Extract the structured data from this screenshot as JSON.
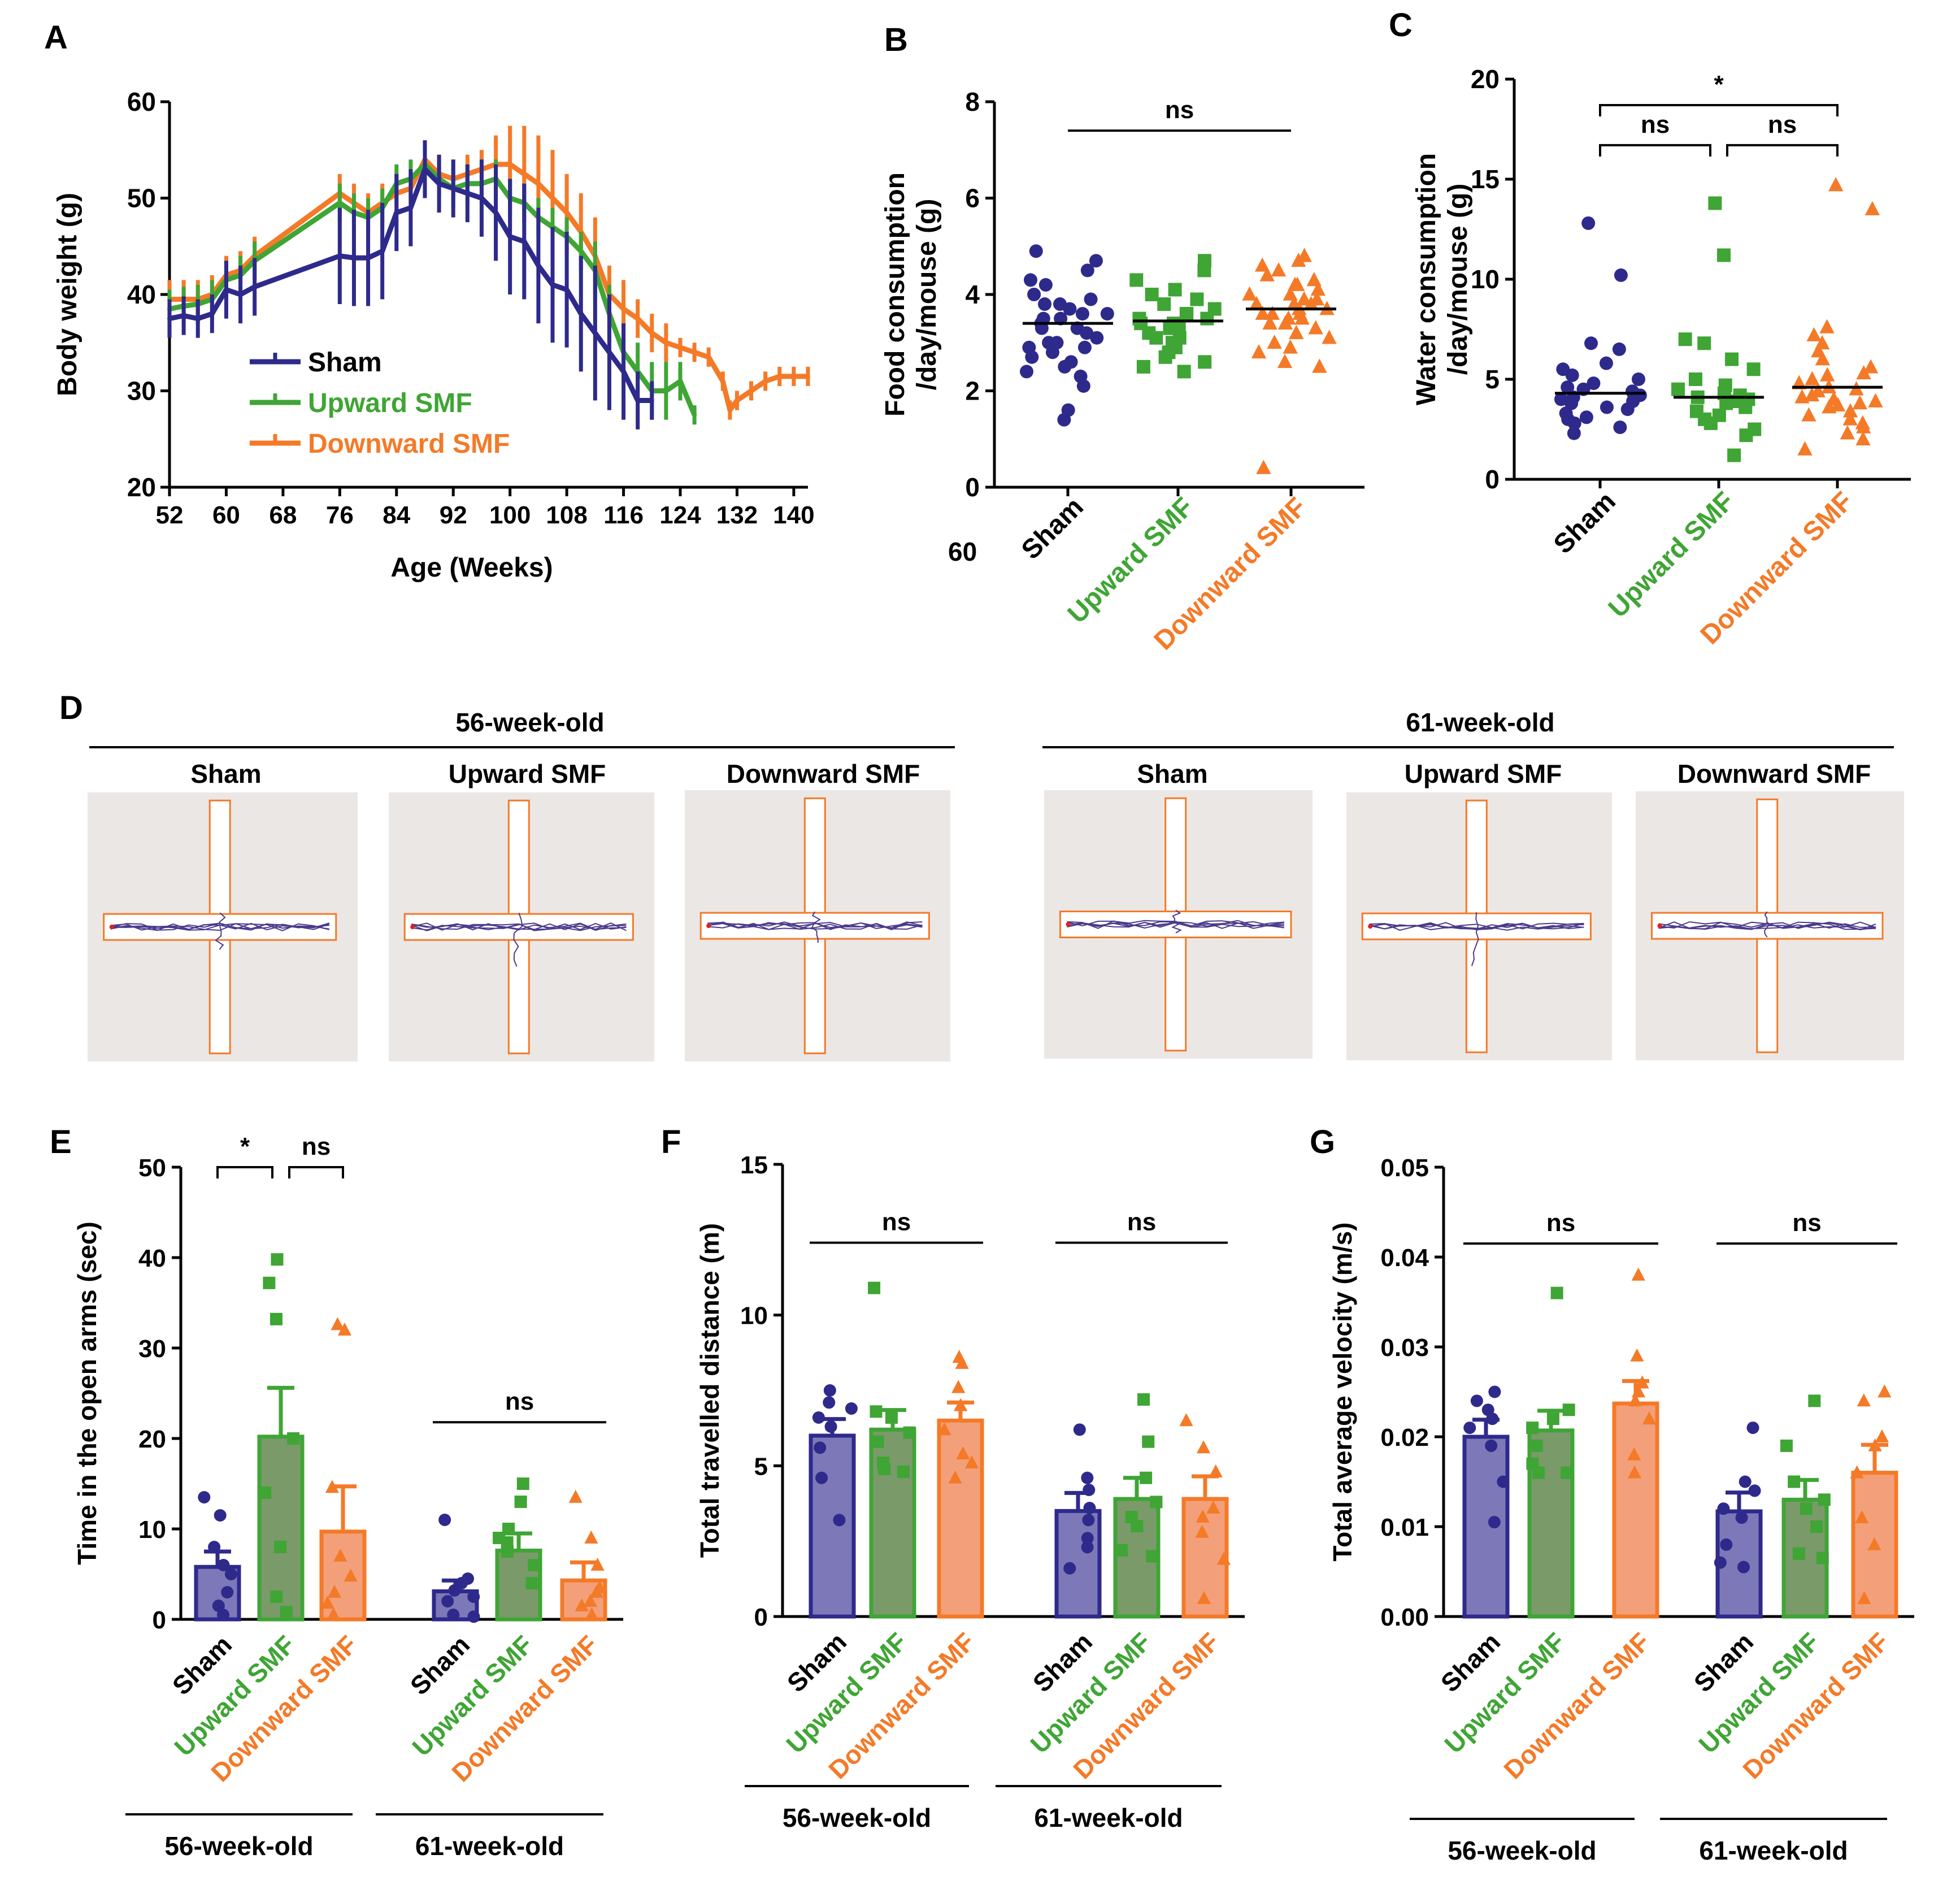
{
  "colors": {
    "sham": "#2e2a8c",
    "upward": "#3fa535",
    "downward": "#f47a28",
    "arena": "#ebe7e5",
    "arm": "#f47a28",
    "track": "#4a3a8c"
  },
  "panels": {
    "A": "A",
    "B": "B",
    "C": "C",
    "D": "D",
    "E": "E",
    "F": "F",
    "G": "G"
  },
  "groups": {
    "sham": "Sham",
    "upward": "Upward SMF",
    "downward": "Downward SMF"
  },
  "ages": {
    "w56": "56-week-old",
    "w61": "61-week-old"
  },
  "stray_label": "60",
  "chart_data": [
    {
      "id": "A",
      "type": "line",
      "title": "",
      "xlabel": "Age (Weeks)",
      "ylabel": "Body weight (g)",
      "xlim": [
        52,
        142
      ],
      "ylim": [
        20,
        60
      ],
      "xticks": [
        "52",
        "60",
        "68",
        "76",
        "84",
        "92",
        "100",
        "108",
        "116",
        "124",
        "132",
        "140"
      ],
      "yticks": [
        "20",
        "30",
        "40",
        "50",
        "60"
      ],
      "legend": [
        "Sham",
        "Upward SMF",
        "Downward SMF"
      ],
      "series": [
        {
          "name": "Sham",
          "color_key": "sham",
          "x": [
            52,
            54,
            56,
            58,
            60,
            62,
            64,
            76,
            78,
            80,
            82,
            84,
            86,
            88,
            90,
            92,
            94,
            96,
            98,
            100,
            102,
            104,
            106,
            108,
            110,
            112,
            114,
            116,
            118,
            120
          ],
          "y": [
            37.5,
            37.8,
            37.5,
            38,
            40.5,
            40,
            40.8,
            44,
            43.8,
            43.8,
            44.5,
            48.5,
            49,
            53,
            51.5,
            51,
            50.5,
            50,
            48.5,
            46,
            45.5,
            43,
            41,
            40.5,
            38,
            36,
            34,
            32,
            29,
            29
          ],
          "err": [
            2,
            2,
            2,
            2,
            3,
            3,
            3,
            5,
            5,
            5,
            5,
            4,
            4,
            3,
            3,
            3,
            3,
            4,
            5,
            6,
            6,
            6,
            6,
            6,
            6,
            7,
            6,
            5,
            3,
            2
          ]
        },
        {
          "name": "Upward SMF",
          "color_key": "upward",
          "x": [
            52,
            54,
            56,
            58,
            60,
            62,
            64,
            76,
            78,
            80,
            82,
            84,
            86,
            88,
            90,
            92,
            94,
            96,
            98,
            100,
            102,
            104,
            106,
            108,
            110,
            112,
            114,
            116,
            118,
            120,
            122,
            124,
            126
          ],
          "y": [
            38.5,
            38.8,
            39,
            39.5,
            41.5,
            42,
            43.5,
            49.5,
            48.5,
            48,
            49,
            51.5,
            52,
            53.5,
            52,
            51,
            51.5,
            51.5,
            52,
            50,
            49.5,
            48,
            47,
            46,
            44.5,
            42.5,
            38,
            34,
            32,
            30,
            30,
            31,
            27.5
          ],
          "err": [
            2,
            2,
            2,
            2,
            2,
            2,
            2,
            2,
            2,
            2,
            2,
            2,
            2,
            2,
            2,
            2,
            2,
            2,
            2,
            2,
            2,
            2,
            2,
            2,
            2,
            3,
            3,
            3,
            3,
            3,
            3,
            2,
            1
          ]
        },
        {
          "name": "Downward SMF",
          "color_key": "downward",
          "x": [
            52,
            54,
            56,
            58,
            60,
            62,
            64,
            76,
            78,
            80,
            82,
            84,
            86,
            88,
            90,
            92,
            94,
            96,
            98,
            100,
            102,
            104,
            106,
            108,
            110,
            112,
            114,
            116,
            118,
            120,
            122,
            124,
            126,
            128,
            130,
            131,
            132,
            134,
            136,
            138,
            140,
            142
          ],
          "y": [
            39.5,
            39.5,
            39.5,
            40,
            42,
            42.5,
            44,
            50.5,
            49.5,
            48.5,
            49.5,
            50.5,
            51,
            54,
            52.5,
            52,
            52.5,
            53,
            53.5,
            53.5,
            52.5,
            51.5,
            50,
            48.5,
            46.5,
            44,
            40,
            38.5,
            37.5,
            36,
            35,
            34.5,
            34,
            33.5,
            31,
            28,
            29,
            30,
            31,
            31.5,
            31.5,
            31.5
          ],
          "err": [
            2,
            2,
            2,
            2,
            2,
            2,
            2,
            2,
            2,
            2,
            2,
            2,
            2,
            2,
            2,
            2,
            2,
            2,
            3,
            4,
            5,
            5,
            5,
            4,
            4,
            4,
            3,
            3,
            2,
            2,
            2,
            1,
            1,
            1,
            1,
            1,
            1,
            1,
            1,
            1,
            1,
            1
          ]
        }
      ]
    },
    {
      "id": "B",
      "type": "scatter",
      "ylabel": "Food consumption /day/mouse (g)",
      "ylabel_lines": [
        "Food consumption",
        "/day/mouse (g)"
      ],
      "ylim": [
        0,
        8
      ],
      "yticks": [
        "0",
        "2",
        "4",
        "6",
        "8"
      ],
      "categories": [
        "Sham",
        "Upward SMF",
        "Downward SMF"
      ],
      "means": [
        3.4,
        3.45,
        3.7
      ],
      "points": [
        [
          4.9,
          4.7,
          4.5,
          4.3,
          4.2,
          4.0,
          3.9,
          3.8,
          3.7,
          3.6,
          3.5,
          3.5,
          3.4,
          3.3,
          3.3,
          3.2,
          3.1,
          3.0,
          2.9,
          2.8,
          2.7,
          2.6,
          2.5,
          2.4,
          2.3,
          2.1,
          1.6,
          1.4,
          3.8,
          3.6,
          3.0,
          2.9
        ],
        [
          4.7,
          4.5,
          4.3,
          4.1,
          4.0,
          3.9,
          3.8,
          3.7,
          3.6,
          3.5,
          3.4,
          3.4,
          3.3,
          3.2,
          3.1,
          3.0,
          2.9,
          2.8,
          2.7,
          2.6,
          2.5,
          2.4,
          3.6,
          3.5,
          3.3,
          3.1
        ],
        [
          4.8,
          4.7,
          4.6,
          4.5,
          4.4,
          4.3,
          4.2,
          4.1,
          4.0,
          3.9,
          3.9,
          3.8,
          3.8,
          3.7,
          3.7,
          3.6,
          3.6,
          3.5,
          3.5,
          3.4,
          3.3,
          3.2,
          3.1,
          3.0,
          2.9,
          2.8,
          2.6,
          2.5,
          0.4,
          4.2,
          4.0,
          3.8,
          3.6,
          3.4
        ]
      ],
      "brackets": [
        {
          "from": 0,
          "to": 2,
          "label": "ns",
          "y": 7.4
        }
      ]
    },
    {
      "id": "C",
      "type": "scatter",
      "ylabel": "Water consumption /day/mouse (g)",
      "ylabel_lines": [
        "Water consumption",
        "/day/mouse (g)"
      ],
      "ylim": [
        0,
        20
      ],
      "yticks": [
        "0",
        "5",
        "10",
        "15",
        "20"
      ],
      "categories": [
        "Sham",
        "Upward SMF",
        "Downward SMF"
      ],
      "means": [
        4.3,
        4.1,
        4.6
      ],
      "points": [
        [
          12.8,
          10.2,
          6.8,
          6.5,
          5.8,
          5.5,
          5.2,
          5.0,
          4.8,
          4.6,
          4.5,
          4.3,
          4.2,
          4.0,
          3.9,
          3.8,
          3.6,
          3.5,
          3.3,
          3.1,
          3.0,
          2.8,
          2.6,
          2.3,
          4.4,
          4.1
        ],
        [
          13.8,
          11.2,
          7.0,
          6.8,
          6.0,
          5.5,
          5.0,
          4.7,
          4.5,
          4.3,
          4.2,
          4.0,
          3.9,
          3.8,
          3.6,
          3.4,
          3.2,
          3.0,
          2.8,
          2.5,
          2.2,
          1.2,
          4.1,
          3.9
        ],
        [
          14.7,
          13.5,
          7.6,
          7.2,
          6.8,
          6.4,
          6.0,
          5.6,
          5.3,
          5.0,
          4.8,
          4.6,
          4.4,
          4.2,
          4.0,
          3.9,
          3.8,
          3.6,
          3.4,
          3.2,
          3.0,
          2.8,
          2.6,
          2.3,
          2.0,
          1.5,
          4.5,
          4.1,
          3.7,
          5.2
        ]
      ],
      "brackets": [
        {
          "from": 0,
          "to": 1,
          "label": "ns",
          "y": 16.7
        },
        {
          "from": 1,
          "to": 2,
          "label": "ns",
          "y": 16.7
        },
        {
          "from": 0,
          "to": 2,
          "label": "*",
          "y": 18.7
        }
      ]
    },
    {
      "id": "E",
      "type": "bar",
      "ylabel": "Time in the open arms (sec)",
      "ylim": [
        0,
        50
      ],
      "yticks": [
        "0",
        "10",
        "20",
        "30",
        "40",
        "50"
      ],
      "categories": [
        "Sham",
        "Upward SMF",
        "Downward SMF",
        "Sham",
        "Upward SMF",
        "Downward SMF"
      ],
      "values": [
        5.8,
        20.2,
        9.7,
        3.1,
        7.6,
        4.3
      ],
      "err": [
        1.7,
        5.4,
        5.0,
        1.2,
        1.9,
        2.0
      ],
      "points": [
        [
          13.5,
          11.5,
          8,
          6,
          5,
          3,
          1.5,
          0.5
        ],
        [
          39.8,
          37.2,
          33.2,
          20,
          14,
          8,
          2.5,
          0.8
        ],
        [
          32.6,
          32,
          14.6,
          7,
          4.8,
          3,
          1.8,
          0.5
        ],
        [
          11,
          4.5,
          4,
          3.2,
          2.5,
          2,
          0.5,
          0.3
        ],
        [
          15,
          13,
          10,
          9,
          8.5,
          7.5,
          6,
          4
        ],
        [
          13.5,
          9,
          6,
          3.5,
          3,
          2,
          1.5,
          0.5
        ]
      ],
      "brackets": [
        {
          "from": 0,
          "to": 1,
          "label": "*",
          "y": 50,
          "drop": true
        },
        {
          "from": 1,
          "to": 2,
          "label": "ns",
          "y": 50,
          "drop": true
        },
        {
          "from": 3,
          "to": 5,
          "label": "ns",
          "y": 21.8,
          "drop": false
        }
      ]
    },
    {
      "id": "F",
      "type": "bar",
      "ylabel": "Total travelled distance (m)",
      "ylim": [
        0,
        15
      ],
      "yticks": [
        "0",
        "5",
        "10",
        "15"
      ],
      "categories": [
        "Sham",
        "Upward SMF",
        "Downward SMF",
        "Sham",
        "Upward SMF",
        "Downward SMF"
      ],
      "values": [
        6.0,
        6.2,
        6.5,
        3.5,
        3.9,
        3.9
      ],
      "err": [
        0.55,
        0.65,
        0.6,
        0.6,
        0.7,
        0.75
      ],
      "points": [
        [
          7.5,
          7.1,
          6.9,
          6.6,
          6.3,
          5.6,
          4.6,
          3.2
        ],
        [
          10.9,
          6.8,
          6.6,
          6.1,
          5.8,
          5.1,
          4.9,
          4.8
        ],
        [
          8.6,
          8.4,
          7.6,
          7.0,
          6.2,
          5.4,
          5.1,
          4.6
        ],
        [
          6.2,
          4.6,
          4.2,
          3.6,
          3.2,
          2.6,
          2.3,
          1.6
        ],
        [
          7.2,
          5.8,
          4.6,
          3.8,
          3.3,
          3.0,
          2.2,
          2.0
        ],
        [
          6.5,
          5.6,
          4.8,
          3.6,
          3.3,
          2.8,
          1.9,
          0.6
        ]
      ],
      "brackets": [
        {
          "from": 0,
          "to": 2,
          "label": "ns",
          "y": 12.4,
          "drop": false
        },
        {
          "from": 3,
          "to": 5,
          "label": "ns",
          "y": 12.4,
          "drop": false
        }
      ]
    },
    {
      "id": "G",
      "type": "bar",
      "ylabel": "Total average velocity (m/s)",
      "ylim": [
        0,
        0.05
      ],
      "yticks": [
        "0.00",
        "0.01",
        "0.02",
        "0.03",
        "0.04",
        "0.05"
      ],
      "categories": [
        "Sham",
        "Upward SMF",
        "Downward SMF",
        "Sham",
        "Upward SMF",
        "Downward SMF"
      ],
      "values": [
        0.02,
        0.0207,
        0.0237,
        0.0117,
        0.013,
        0.016
      ],
      "err": [
        0.0019,
        0.0022,
        0.0025,
        0.0021,
        0.0022,
        0.0031
      ],
      "points": [
        [
          0.025,
          0.024,
          0.023,
          0.022,
          0.021,
          0.019,
          0.015,
          0.0105
        ],
        [
          0.036,
          0.023,
          0.022,
          0.021,
          0.019,
          0.017,
          0.016,
          0.016
        ],
        [
          0.038,
          0.029,
          0.026,
          0.025,
          0.024,
          0.022,
          0.018,
          0.016
        ],
        [
          0.021,
          0.015,
          0.014,
          0.012,
          0.011,
          0.008,
          0.006,
          0.0055
        ],
        [
          0.024,
          0.019,
          0.015,
          0.013,
          0.012,
          0.01,
          0.007,
          0.0065
        ],
        [
          0.025,
          0.024,
          0.02,
          0.019,
          0.016,
          0.011,
          0.008,
          0.002
        ]
      ],
      "brackets": [
        {
          "from": 0,
          "to": 2,
          "label": "ns",
          "y": 0.0415,
          "drop": false
        },
        {
          "from": 3,
          "to": 5,
          "label": "ns",
          "y": 0.0415,
          "drop": false
        }
      ]
    }
  ]
}
